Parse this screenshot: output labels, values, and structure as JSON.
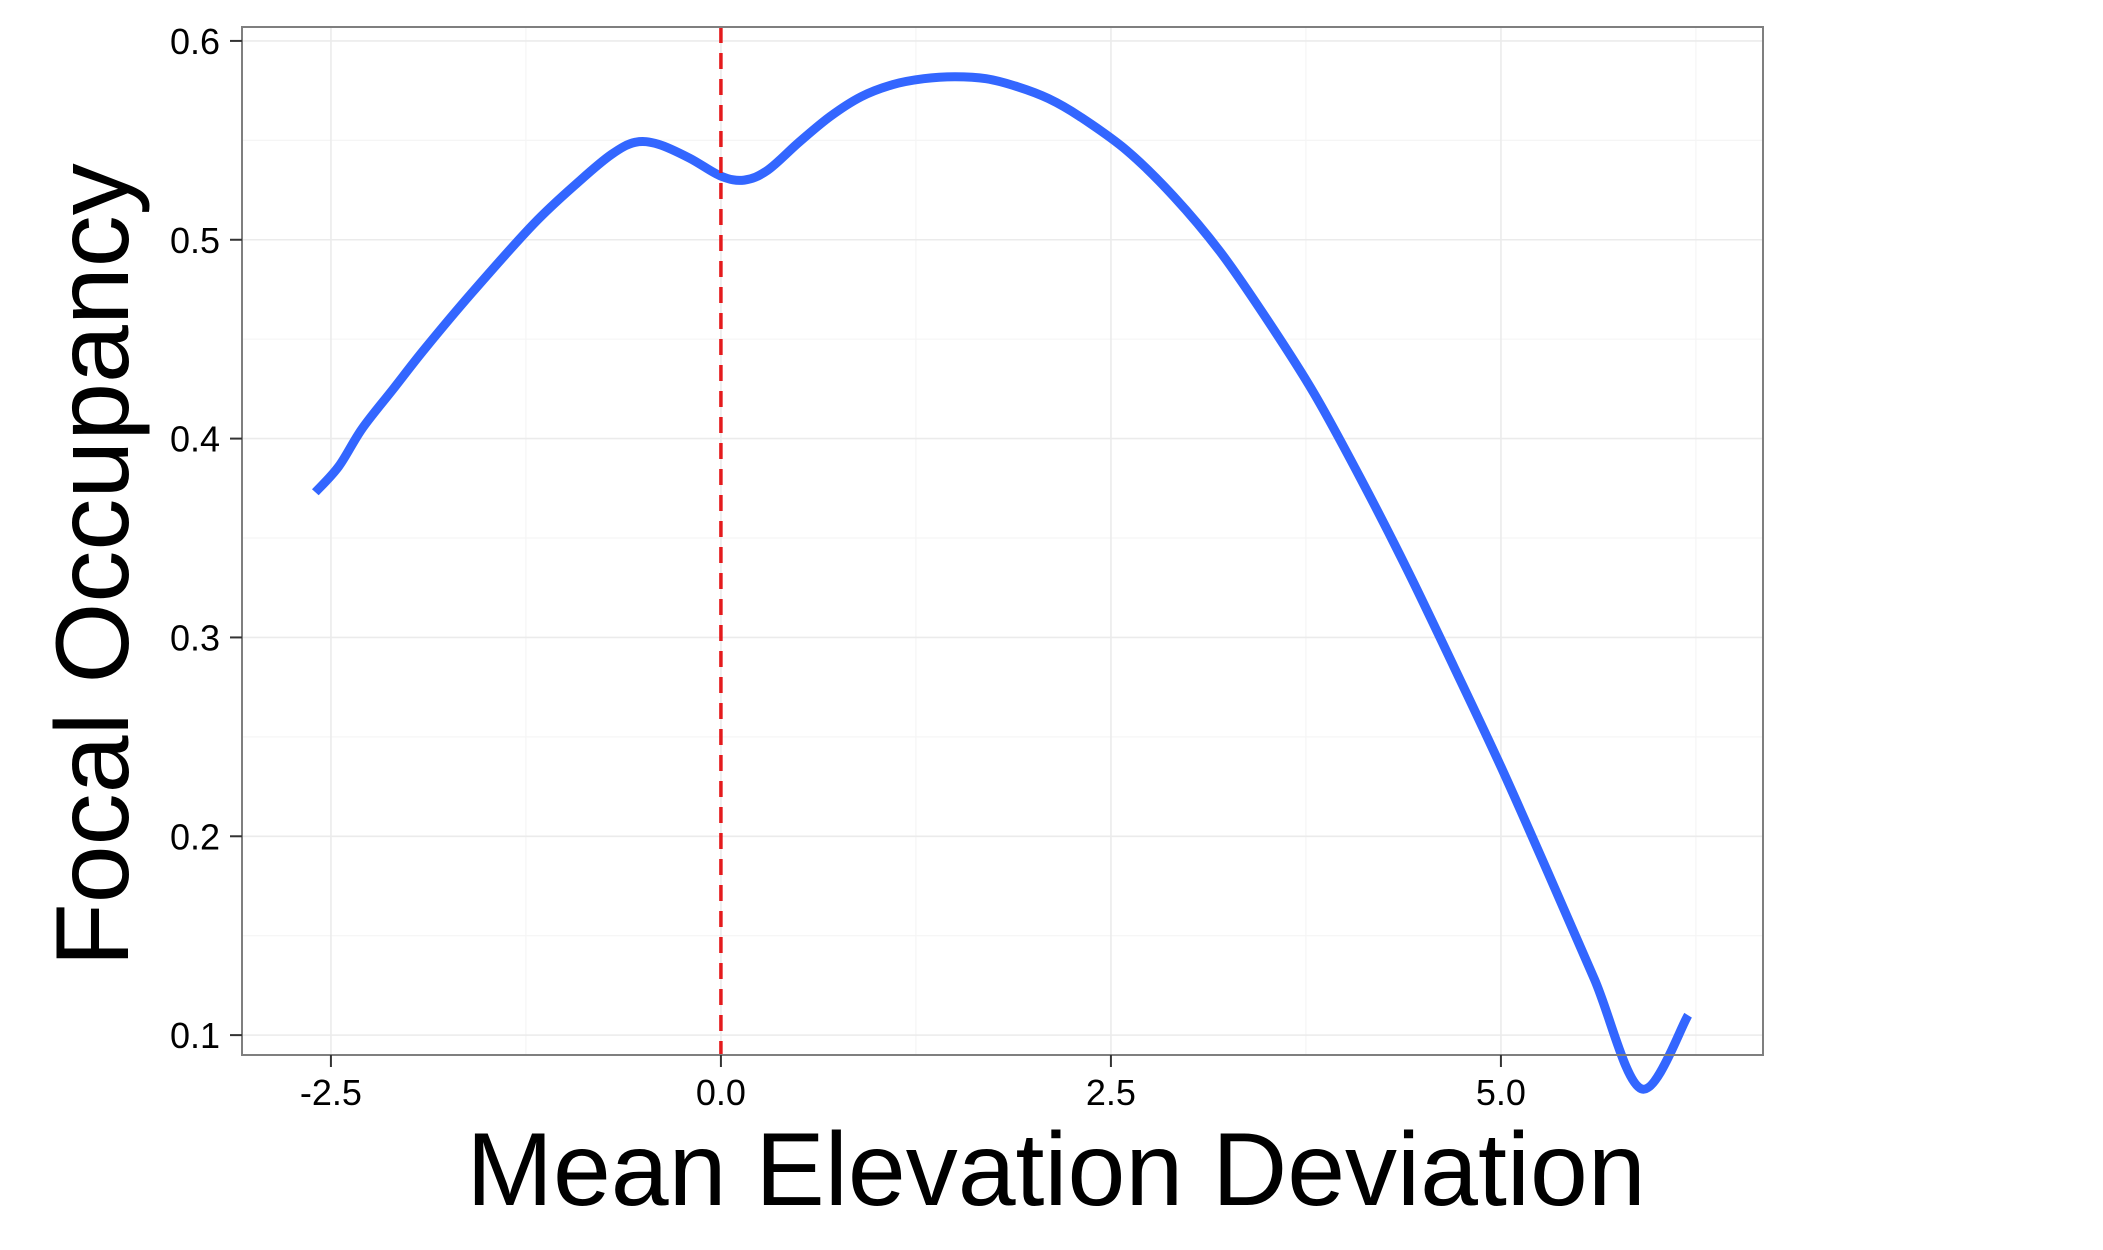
{
  "chart_data": {
    "type": "line",
    "title": "",
    "xlabel": "Mean Elevation Deviation",
    "ylabel": "Focal Occupancy",
    "xlim": [
      -3.07,
      6.68
    ],
    "ylim": [
      0.09,
      0.607
    ],
    "xticks": [
      {
        "value": -2.5,
        "label": "-2.5"
      },
      {
        "value": 0.0,
        "label": "0.0"
      },
      {
        "value": 2.5,
        "label": "2.5"
      },
      {
        "value": 5.0,
        "label": "5.0"
      }
    ],
    "yticks": [
      {
        "value": 0.1,
        "label": "0.1"
      },
      {
        "value": 0.2,
        "label": "0.2"
      },
      {
        "value": 0.3,
        "label": "0.3"
      },
      {
        "value": 0.4,
        "label": "0.4"
      },
      {
        "value": 0.5,
        "label": "0.5"
      },
      {
        "value": 0.6,
        "label": "0.6"
      }
    ],
    "grid": true,
    "series": [
      {
        "color": "#3366FF",
        "x": [
          -2.6,
          -2.45,
          -2.3,
          -2.1,
          -1.9,
          -1.6,
          -1.2,
          -0.9,
          -0.7,
          -0.55,
          -0.4,
          -0.2,
          0.0,
          0.15,
          0.3,
          0.5,
          0.7,
          0.9,
          1.1,
          1.3,
          1.5,
          1.7,
          1.9,
          2.1,
          2.3,
          2.6,
          2.9,
          3.2,
          3.5,
          3.8,
          4.1,
          4.4,
          4.7,
          5.0,
          5.3,
          5.6,
          5.9,
          6.2
        ],
        "y": [
          0.373,
          0.386,
          0.405,
          0.425,
          0.445,
          0.473,
          0.508,
          0.53,
          0.543,
          0.549,
          0.548,
          0.541,
          0.532,
          0.53,
          0.535,
          0.549,
          0.562,
          0.572,
          0.578,
          0.581,
          0.582,
          0.581,
          0.577,
          0.571,
          0.562,
          0.545,
          0.522,
          0.494,
          0.46,
          0.423,
          0.38,
          0.334,
          0.285,
          0.235,
          0.182,
          0.128,
          0.073,
          0.11
        ]
      }
    ],
    "reference_line": {
      "x": 0.0,
      "color": "#E41A1C",
      "style": "dashed"
    }
  }
}
